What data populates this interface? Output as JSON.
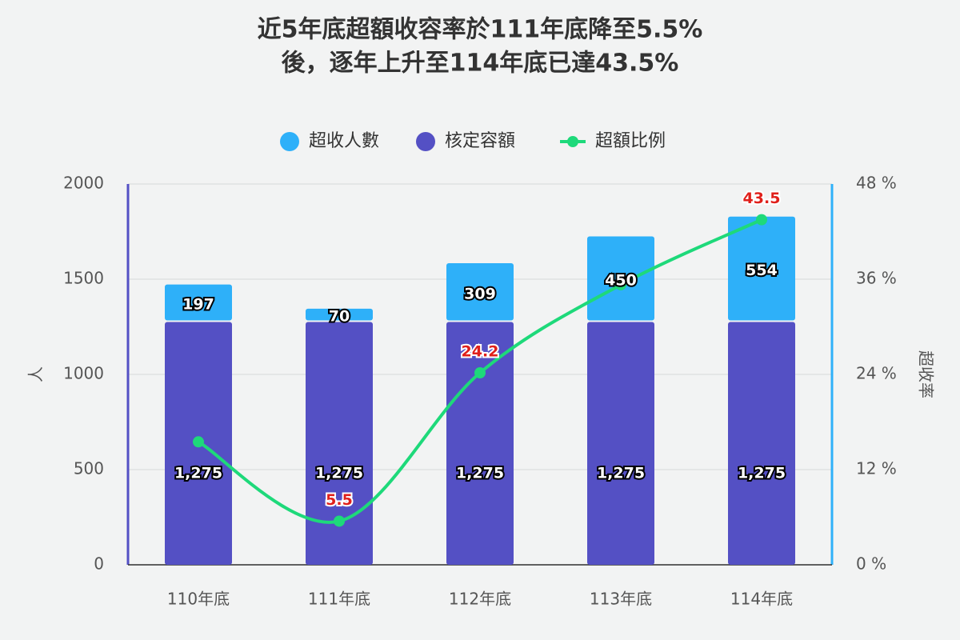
{
  "chart_data": {
    "type": "bar",
    "stacked": true,
    "title": [
      "近5年底超額收容率於111年底降至5.5%",
      "後，逐年上升至114年底已達43.5%"
    ],
    "y_label": "人",
    "y2_label": "超收率",
    "categories": [
      "110年底",
      "111年底",
      "112年底",
      "113年底",
      "114年底"
    ],
    "ylim": [
      0,
      2000
    ],
    "yticks": [
      0,
      500,
      1000,
      1500,
      2000
    ],
    "y2lim": [
      0,
      48
    ],
    "y2ticks": [
      {
        "value": 0,
        "label": "0 %"
      },
      {
        "value": 12,
        "label": "12 %"
      },
      {
        "value": 24,
        "label": "24 %"
      },
      {
        "value": 36,
        "label": "36 %"
      },
      {
        "value": 48,
        "label": "48 %"
      }
    ],
    "grid": true,
    "series": [
      {
        "name": "超收人數",
        "color": "#2eb0f9",
        "values": [
          197,
          70,
          309,
          450,
          554
        ]
      },
      {
        "name": "核定容額",
        "color": "#5450c4",
        "values": [
          1275,
          1275,
          1275,
          1275,
          1275
        ],
        "value_labels": [
          "1,275",
          "1,275",
          "1,275",
          "1,275",
          "1,275"
        ]
      },
      {
        "name": "超額比例",
        "color": "#1ed97a",
        "type": "line",
        "axis": "y2",
        "values": [
          15.5,
          5.5,
          24.2,
          35.3,
          43.5
        ],
        "value_labels": [
          null,
          "5.5",
          "24.2",
          null,
          "43.5"
        ]
      }
    ]
  }
}
